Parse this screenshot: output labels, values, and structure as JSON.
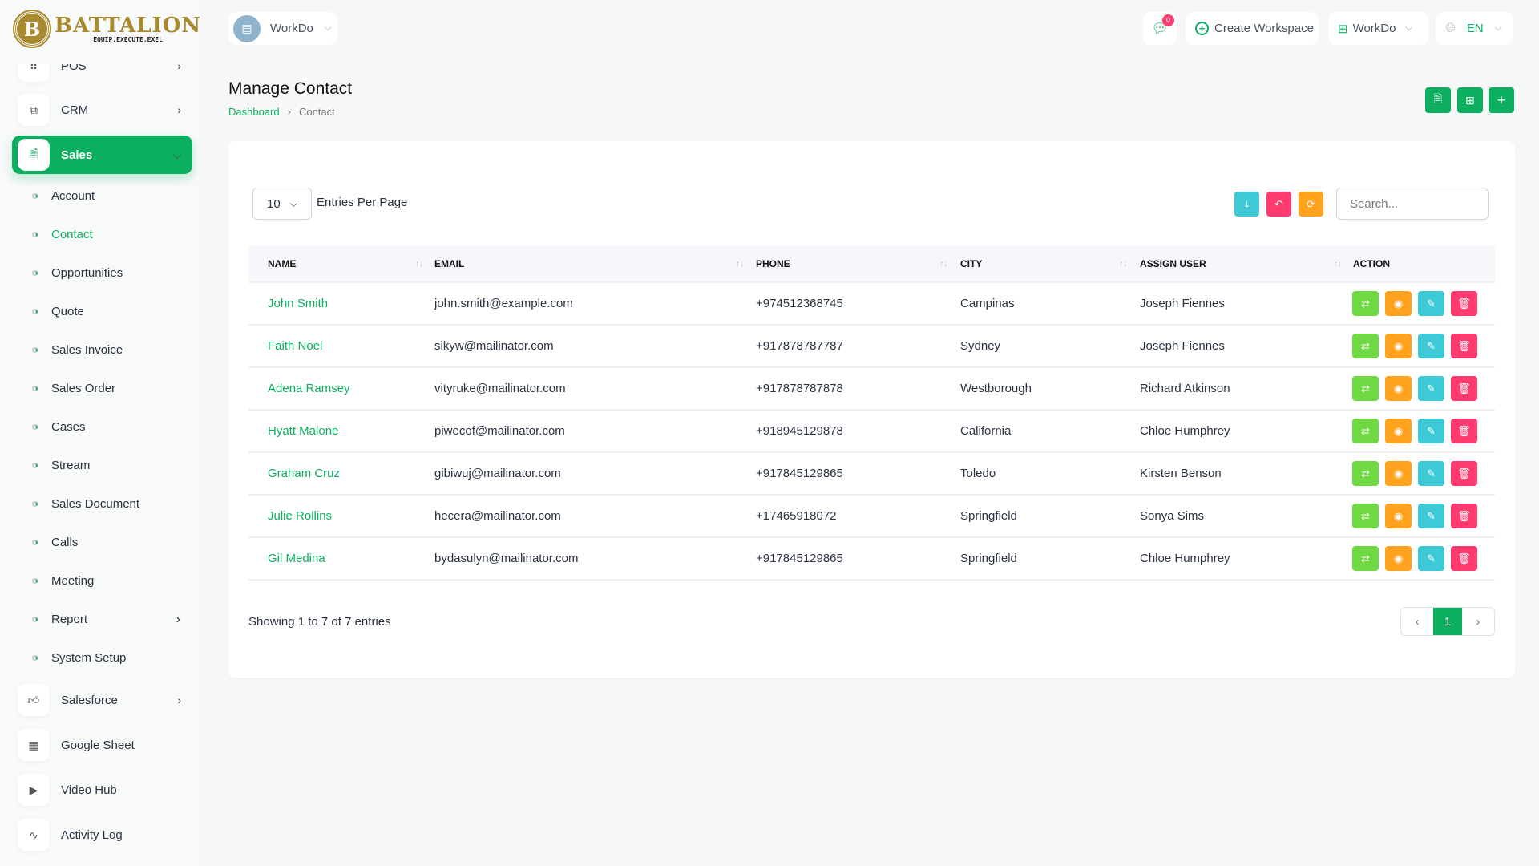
{
  "brand": {
    "name": "BATTALION",
    "tagline": "EQUIP,EXECUTE,EXEL",
    "initial": "B"
  },
  "sidebar": {
    "items": [
      {
        "label": "POS",
        "icon": "grid-dots-icon",
        "has_children": true
      },
      {
        "label": "CRM",
        "icon": "copy-icon",
        "has_children": true
      },
      {
        "label": "Sales",
        "icon": "file-invoice-icon",
        "has_children": true,
        "active": true
      }
    ],
    "sub_items": [
      {
        "label": "Account"
      },
      {
        "label": "Contact",
        "active": true
      },
      {
        "label": "Opportunities"
      },
      {
        "label": "Quote"
      },
      {
        "label": "Sales Invoice"
      },
      {
        "label": "Sales Order"
      },
      {
        "label": "Cases"
      },
      {
        "label": "Stream"
      },
      {
        "label": "Sales Document"
      },
      {
        "label": "Calls"
      },
      {
        "label": "Meeting"
      },
      {
        "label": "Report",
        "has_children": true
      },
      {
        "label": "System Setup"
      }
    ],
    "bottom_items": [
      {
        "label": "Salesforce",
        "icon": "thumbs-up-icon",
        "has_children": true
      },
      {
        "label": "Google Sheet",
        "icon": "table-icon"
      },
      {
        "label": "Video Hub",
        "icon": "video-icon"
      },
      {
        "label": "Activity Log",
        "icon": "activity-icon"
      }
    ]
  },
  "header": {
    "workspace": "WorkDo",
    "notification_count": "0",
    "create_workspace": "Create Workspace",
    "workspace_switch": "WorkDo",
    "language": "EN"
  },
  "page": {
    "title": "Manage Contact",
    "breadcrumb": [
      "Dashboard",
      "Contact"
    ]
  },
  "table_controls": {
    "per_page": "10",
    "per_page_label": "Entries Per Page",
    "search_placeholder": "Search..."
  },
  "table": {
    "columns": [
      "NAME",
      "EMAIL",
      "PHONE",
      "CITY",
      "ASSIGN USER",
      "ACTION"
    ],
    "rows": [
      {
        "name": "John Smith",
        "email": "john.smith@example.com",
        "phone": "+974512368745",
        "city": "Campinas",
        "user": "Joseph Fiennes"
      },
      {
        "name": "Faith Noel",
        "email": "sikyw@mailinator.com",
        "phone": "+917878787787",
        "city": "Sydney",
        "user": "Joseph Fiennes"
      },
      {
        "name": "Adena Ramsey",
        "email": "vityruke@mailinator.com",
        "phone": "+917878787878",
        "city": "Westborough",
        "user": "Richard Atkinson"
      },
      {
        "name": "Hyatt Malone",
        "email": "piwecof@mailinator.com",
        "phone": "+918945129878",
        "city": "California",
        "user": "Chloe Humphrey"
      },
      {
        "name": "Graham Cruz",
        "email": "gibiwuj@mailinator.com",
        "phone": "+917845129865",
        "city": "Toledo",
        "user": "Kirsten Benson"
      },
      {
        "name": "Julie Rollins",
        "email": "hecera@mailinator.com",
        "phone": "+17465918072",
        "city": "Springfield",
        "user": "Sonya Sims"
      },
      {
        "name": "Gil Medina",
        "email": "bydasulyn@mailinator.com",
        "phone": "+917845129865",
        "city": "Springfield",
        "user": "Chloe Humphrey"
      }
    ]
  },
  "footer": {
    "showing": "Showing 1 to 7 of 7 entries",
    "current_page": "1"
  },
  "colors": {
    "primary": "#0caf60",
    "green": "#6fd943",
    "orange": "#ffa21d",
    "teal": "#3ec9d6",
    "red": "#ff3a6e"
  }
}
